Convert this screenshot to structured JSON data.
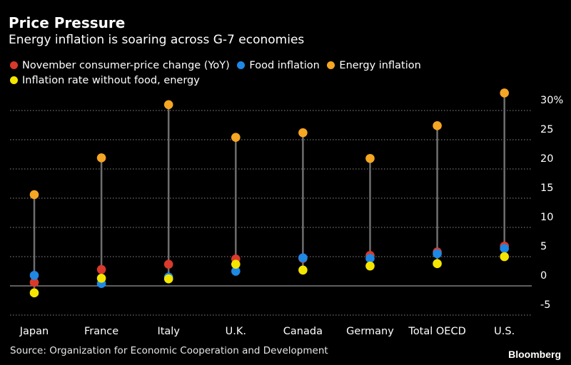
{
  "header": {
    "title": "Price Pressure",
    "subtitle": "Energy inflation is soaring across G-7 economies"
  },
  "footer": {
    "source": "Source: Organization for Economic Cooperation and Development",
    "brand": "Bloomberg"
  },
  "colors": {
    "headline": "#d93a2b",
    "food": "#1e88e5",
    "energy": "#f5a623",
    "core": "#f5e600",
    "stem": "#6e6e6e",
    "grid": "#8a8a8a"
  },
  "chart_data": {
    "type": "scatter",
    "categories": [
      "Japan",
      "France",
      "Italy",
      "U.K.",
      "Canada",
      "Germany",
      "Total OECD",
      "U.S."
    ],
    "series": [
      {
        "name": "November consumer-price change (YoY)",
        "color_key": "headline",
        "values": [
          0.6,
          2.8,
          3.7,
          4.6,
          4.7,
          5.2,
          5.8,
          6.8
        ]
      },
      {
        "name": "Food inflation",
        "color_key": "food",
        "values": [
          1.8,
          0.4,
          1.5,
          2.5,
          4.8,
          4.7,
          5.5,
          6.4
        ]
      },
      {
        "name": "Energy inflation",
        "color_key": "energy",
        "values": [
          15.6,
          21.9,
          31.0,
          25.4,
          26.2,
          21.8,
          27.4,
          33.0
        ]
      },
      {
        "name": "Inflation rate without food, energy",
        "color_key": "core",
        "values": [
          -1.2,
          1.3,
          1.2,
          3.7,
          2.7,
          3.4,
          3.8,
          5.0
        ]
      }
    ],
    "yticks": [
      -5,
      0,
      5,
      10,
      15,
      20,
      25,
      30
    ],
    "ytick_labels": [
      "-5",
      "0",
      "5",
      "10",
      "15",
      "20",
      "25",
      "30%"
    ],
    "ylim": [
      -5,
      33
    ],
    "grid": true,
    "legend_placement": "top-left"
  }
}
